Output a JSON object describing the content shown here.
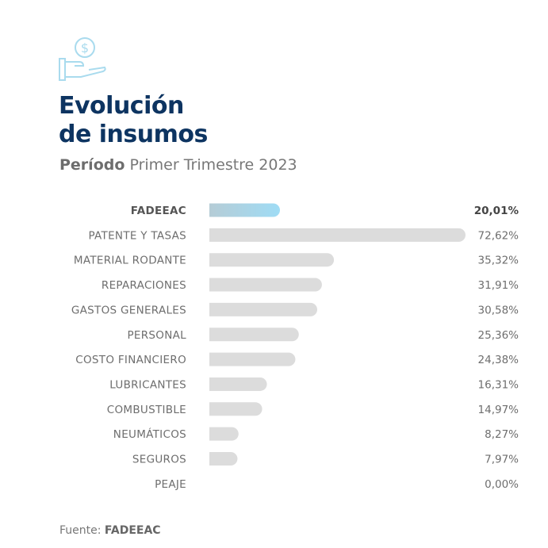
{
  "header": {
    "icon": "hand-holding-dollar-icon",
    "title_line1": "Evolución",
    "title_line2": "de insumos",
    "subtitle_bold": "Período",
    "subtitle_rest": "Primer Trimestre 2023"
  },
  "chart_data": {
    "type": "bar",
    "orientation": "horizontal",
    "categories": [
      "FADEEAC",
      "PATENTE Y TASAS",
      "MATERIAL RODANTE",
      "REPARACIONES",
      "GASTOS GENERALES",
      "PERSONAL",
      "COSTO FINANCIERO",
      "LUBRICANTES",
      "COMBUSTIBLE",
      "NEUMÁTICOS",
      "SEGUROS",
      "PEAJE"
    ],
    "values": [
      20.01,
      72.62,
      35.32,
      31.91,
      30.58,
      25.36,
      24.38,
      16.31,
      14.97,
      8.27,
      7.97,
      0.0
    ],
    "value_labels": [
      "20,01%",
      "72,62%",
      "35,32%",
      "31,91%",
      "30,58%",
      "25,36%",
      "24,38%",
      "16,31%",
      "14,97%",
      "8,27%",
      "7,97%",
      "0,00%"
    ],
    "highlight": "FADEEAC",
    "colors": {
      "highlight_start": "#b5ccd6",
      "highlight_end": "#9fdcf5",
      "bar": "#dcdcdc"
    },
    "grid": false
  },
  "footer": {
    "source_label": "Fuente:",
    "source_name": "FADEEAC"
  }
}
